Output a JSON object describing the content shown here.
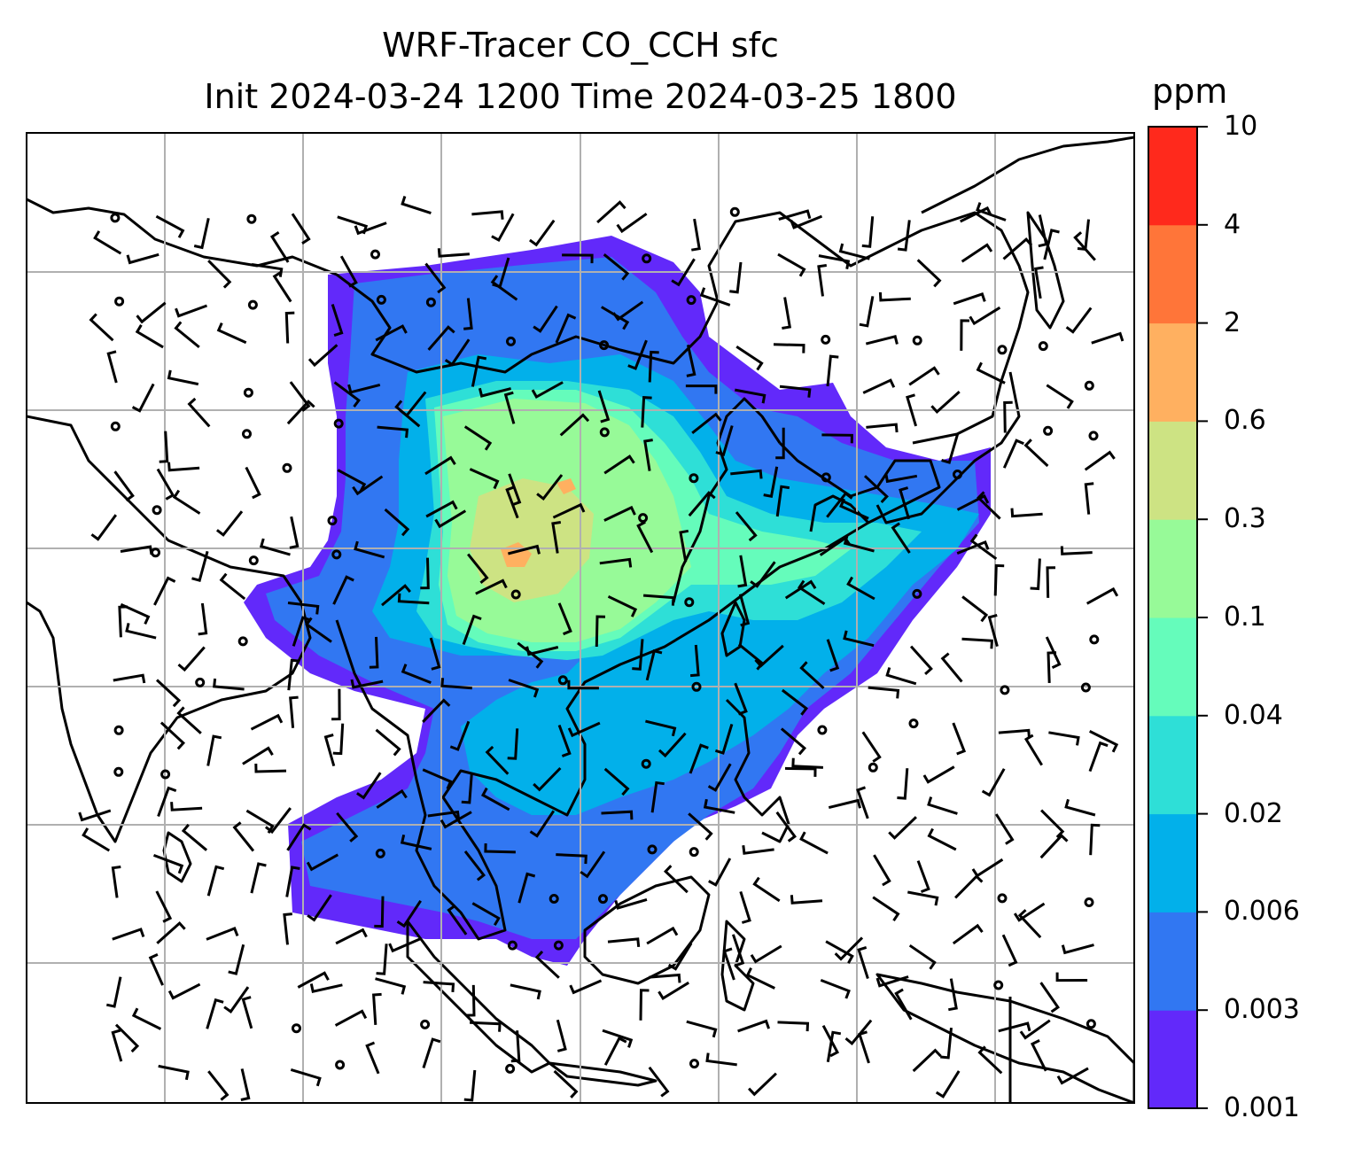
{
  "title": {
    "line1": "WRF-Tracer CO_CCH sfc",
    "line2": "Init 2024-03-24 1200 Time 2024-03-25 1800"
  },
  "colorbar": {
    "unit": "ppm",
    "levels": [
      "0.001",
      "0.003",
      "0.006",
      "0.02",
      "0.04",
      "0.1",
      "0.3",
      "0.6",
      "2",
      "4",
      "10"
    ],
    "colors": [
      "#6229FA",
      "#3177F2",
      "#02B0EA",
      "#2EDFD7",
      "#65FCBB",
      "#97FA98",
      "#CDE383",
      "#FFB060",
      "#FF7539",
      "#FF291C"
    ]
  },
  "map": {
    "land_outline_color": "#000000",
    "gridline_color": "#b0b0b0",
    "barb_color": "#000000"
  }
}
